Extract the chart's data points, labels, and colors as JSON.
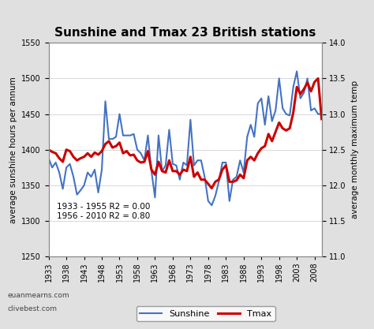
{
  "title": "Sunshine and Tmax 23 British stations",
  "ylabel_left": "average sunshine hours per annum",
  "ylabel_right": "average monthly maximum temp",
  "ylim_left": [
    1250,
    1550
  ],
  "ylim_right": [
    11.0,
    14.0
  ],
  "yticks_left": [
    1250,
    1300,
    1350,
    1400,
    1450,
    1500,
    1550
  ],
  "yticks_right": [
    11.0,
    11.5,
    12.0,
    12.5,
    13.0,
    13.5,
    14.0
  ],
  "bg_color": "#e0e0e0",
  "plot_bg_color": "#ffffff",
  "annotation": "1933 - 1955 R2 = 0.00\n1956 - 2010 R2 = 0.80",
  "watermark1": "euanmearns.com",
  "watermark2": "clivebest.com",
  "sunshine_color": "#4472c4",
  "tmax_color": "#cc0000",
  "years": [
    1933,
    1934,
    1935,
    1936,
    1937,
    1938,
    1939,
    1940,
    1941,
    1942,
    1943,
    1944,
    1945,
    1946,
    1947,
    1948,
    1949,
    1950,
    1951,
    1952,
    1953,
    1954,
    1955,
    1956,
    1957,
    1958,
    1959,
    1960,
    1961,
    1962,
    1963,
    1964,
    1965,
    1966,
    1967,
    1968,
    1969,
    1970,
    1971,
    1972,
    1973,
    1974,
    1975,
    1976,
    1977,
    1978,
    1979,
    1980,
    1981,
    1982,
    1983,
    1984,
    1985,
    1986,
    1987,
    1988,
    1989,
    1990,
    1991,
    1992,
    1993,
    1994,
    1995,
    1996,
    1997,
    1998,
    1999,
    2000,
    2001,
    2002,
    2003,
    2004,
    2005,
    2006,
    2007,
    2008,
    2009,
    2010
  ],
  "sunshine": [
    1388,
    1375,
    1382,
    1368,
    1345,
    1375,
    1380,
    1362,
    1337,
    1343,
    1350,
    1368,
    1362,
    1372,
    1340,
    1372,
    1468,
    1415,
    1415,
    1418,
    1450,
    1420,
    1420,
    1420,
    1422,
    1400,
    1395,
    1385,
    1420,
    1370,
    1333,
    1420,
    1370,
    1378,
    1428,
    1380,
    1378,
    1358,
    1382,
    1378,
    1442,
    1378,
    1385,
    1385,
    1362,
    1328,
    1322,
    1335,
    1355,
    1382,
    1382,
    1328,
    1358,
    1362,
    1385,
    1368,
    1418,
    1435,
    1418,
    1465,
    1472,
    1435,
    1475,
    1440,
    1455,
    1500,
    1458,
    1450,
    1448,
    1488,
    1510,
    1472,
    1480,
    1500,
    1455,
    1458,
    1450,
    1450
  ],
  "tmax": [
    12.5,
    12.47,
    12.45,
    12.38,
    12.33,
    12.5,
    12.48,
    12.4,
    12.35,
    12.38,
    12.4,
    12.45,
    12.4,
    12.46,
    12.43,
    12.48,
    12.58,
    12.62,
    12.53,
    12.55,
    12.6,
    12.45,
    12.48,
    12.42,
    12.43,
    12.35,
    12.32,
    12.33,
    12.48,
    12.22,
    12.15,
    12.33,
    12.2,
    12.18,
    12.35,
    12.2,
    12.2,
    12.15,
    12.22,
    12.2,
    12.4,
    12.12,
    12.18,
    12.08,
    12.08,
    12.02,
    11.96,
    12.05,
    12.08,
    12.22,
    12.28,
    12.05,
    12.05,
    12.07,
    12.15,
    12.1,
    12.35,
    12.4,
    12.35,
    12.45,
    12.52,
    12.55,
    12.72,
    12.62,
    12.75,
    12.88,
    12.8,
    12.77,
    12.8,
    13.02,
    13.38,
    13.28,
    13.35,
    13.44,
    13.32,
    13.45,
    13.5,
    12.93
  ],
  "xtick_years": [
    1933,
    1938,
    1943,
    1948,
    1953,
    1958,
    1963,
    1968,
    1973,
    1978,
    1983,
    1988,
    1993,
    1998,
    2003,
    2008
  ]
}
